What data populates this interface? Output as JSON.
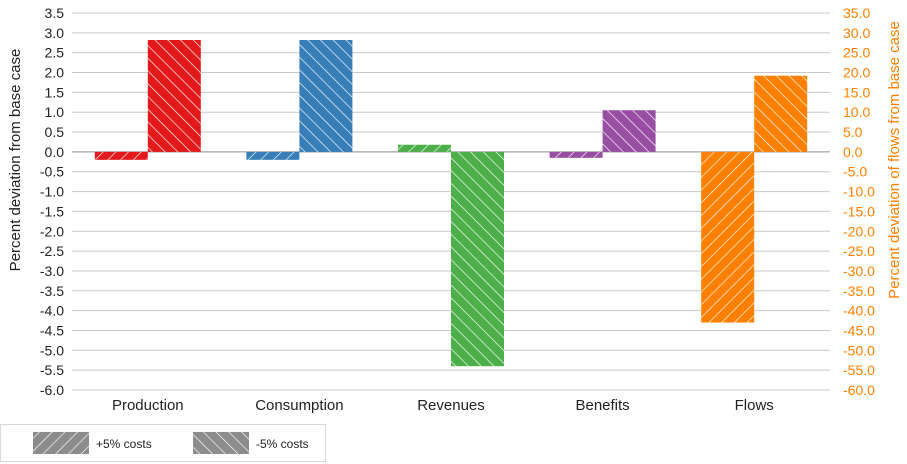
{
  "chart_data": {
    "type": "bar",
    "categories": [
      "Production",
      "Consumption",
      "Revenues",
      "Benefits",
      "Flows"
    ],
    "ylabel": "Percent deviation from base case",
    "y2label": "Percent deviation of flows from base case",
    "ylim": [
      -6.0,
      3.5
    ],
    "y2lim": [
      -60.0,
      35.0
    ],
    "ytick_step": 0.5,
    "y2tick_step": 5.0,
    "grid": true,
    "legend_position": "bottom-left",
    "series": [
      {
        "name": "+5% costs",
        "hatch": "forward",
        "values": [
          -0.2,
          -0.2,
          0.18,
          -0.15,
          -43.0
        ]
      },
      {
        "name": "-5% costs",
        "hatch": "backward",
        "values": [
          2.82,
          2.82,
          -5.4,
          1.05,
          19.2
        ]
      }
    ],
    "secondary_axis_categories": [
      "Flows"
    ],
    "category_colors": {
      "Production": "#e31a1c",
      "Consumption": "#377eb8",
      "Revenues": "#4daf4a",
      "Benefits": "#984ea3",
      "Flows": "#ff8000"
    },
    "legend_swatch_color": "#8c8c8c",
    "right_axis_color": "#ff8000"
  }
}
